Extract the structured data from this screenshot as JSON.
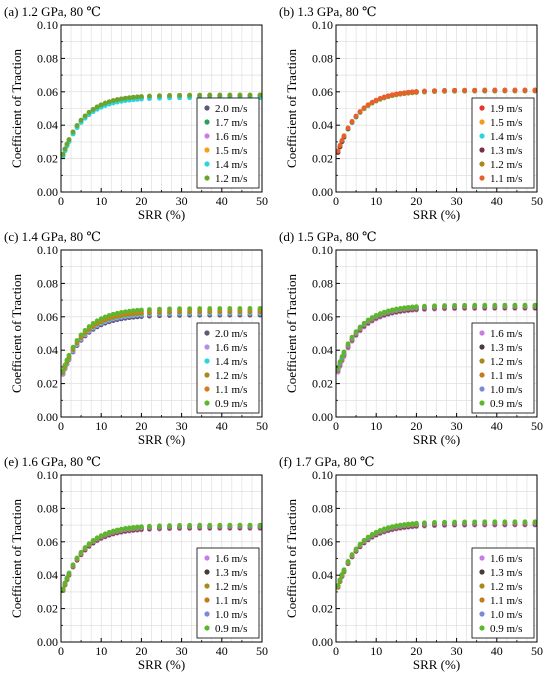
{
  "figure": {
    "background": "#ffffff"
  },
  "panels": [
    {
      "title": "(a) 1.2 GPa, 80 ℃",
      "chart_data": {
        "type": "scatter",
        "xlabel": "SRR (%)",
        "ylabel": "Coefficient of Traction",
        "xlim": [
          0,
          50
        ],
        "ylim": [
          0,
          0.1
        ],
        "xticks": [
          "0",
          "10",
          "20",
          "30",
          "40",
          "50"
        ],
        "yticks": [
          "0.00",
          "0.02",
          "0.04",
          "0.06",
          "0.08",
          "0.10"
        ],
        "grid": true,
        "legend_position": "bottom-right",
        "series": [
          {
            "name": "2.0 m/s",
            "color": "#5a5a78",
            "plateau": 0.058,
            "initial": 0.019
          },
          {
            "name": "1.7 m/s",
            "color": "#2e9e5b",
            "plateau": 0.057,
            "initial": 0.018
          },
          {
            "name": "1.6 m/s",
            "color": "#c77ce8",
            "plateau": 0.0575,
            "initial": 0.019
          },
          {
            "name": "1.5 m/s",
            "color": "#f4a11c",
            "plateau": 0.058,
            "initial": 0.019
          },
          {
            "name": "1.4 m/s",
            "color": "#2ad4e0",
            "plateau": 0.0565,
            "initial": 0.018
          },
          {
            "name": "1.2 m/s",
            "color": "#6aa52a",
            "plateau": 0.058,
            "initial": 0.019
          }
        ]
      }
    },
    {
      "title": "(b) 1.3 GPa, 80 ℃",
      "chart_data": {
        "type": "scatter",
        "xlabel": "SRR (%)",
        "ylabel": "Coefficient of Traction",
        "xlim": [
          0,
          50
        ],
        "ylim": [
          0,
          0.1
        ],
        "xticks": [
          "0",
          "10",
          "20",
          "30",
          "40",
          "50"
        ],
        "yticks": [
          "0.00",
          "0.02",
          "0.04",
          "0.06",
          "0.08",
          "0.10"
        ],
        "grid": true,
        "legend_position": "bottom-right",
        "series": [
          {
            "name": "1.9 m/s",
            "color": "#e8322b",
            "plateau": 0.061,
            "initial": 0.02
          },
          {
            "name": "1.5 m/s",
            "color": "#f49a1c",
            "plateau": 0.0605,
            "initial": 0.02
          },
          {
            "name": "1.4 m/s",
            "color": "#2ad4e0",
            "plateau": 0.0605,
            "initial": 0.02
          },
          {
            "name": "1.3 m/s",
            "color": "#7a2e4a",
            "plateau": 0.061,
            "initial": 0.02
          },
          {
            "name": "1.2 m/s",
            "color": "#a88a1c",
            "plateau": 0.0605,
            "initial": 0.021
          },
          {
            "name": "1.1 m/s",
            "color": "#e8602a",
            "plateau": 0.061,
            "initial": 0.021
          }
        ]
      }
    },
    {
      "title": "(c) 1.4 GPa, 80 ℃",
      "chart_data": {
        "type": "scatter",
        "xlabel": "SRR (%)",
        "ylabel": "Coefficient of Traction",
        "xlim": [
          0,
          50
        ],
        "ylim": [
          0,
          0.1
        ],
        "xticks": [
          "0",
          "10",
          "20",
          "30",
          "40",
          "50"
        ],
        "yticks": [
          "0.00",
          "0.02",
          "0.04",
          "0.06",
          "0.08",
          "0.10"
        ],
        "grid": true,
        "legend_position": "bottom-right",
        "series": [
          {
            "name": "2.0 m/s",
            "color": "#5a5a78",
            "plateau": 0.061,
            "initial": 0.022
          },
          {
            "name": "1.6 m/s",
            "color": "#b58ce8",
            "plateau": 0.062,
            "initial": 0.022
          },
          {
            "name": "1.4 m/s",
            "color": "#2ad4e0",
            "plateau": 0.0625,
            "initial": 0.023
          },
          {
            "name": "1.2 m/s",
            "color": "#a88a1c",
            "plateau": 0.063,
            "initial": 0.023
          },
          {
            "name": "1.1 m/s",
            "color": "#d87a1c",
            "plateau": 0.064,
            "initial": 0.024
          },
          {
            "name": "0.9 m/s",
            "color": "#5cb82a",
            "plateau": 0.065,
            "initial": 0.024
          }
        ]
      }
    },
    {
      "title": "(d) 1.5 GPa, 80 ℃",
      "chart_data": {
        "type": "scatter",
        "xlabel": "SRR (%)",
        "ylabel": "Coefficient of Traction",
        "xlim": [
          0,
          50
        ],
        "ylim": [
          0,
          0.1
        ],
        "xticks": [
          "0",
          "10",
          "20",
          "30",
          "40",
          "50"
        ],
        "yticks": [
          "0.00",
          "0.02",
          "0.04",
          "0.06",
          "0.08",
          "0.10"
        ],
        "grid": true,
        "legend_position": "bottom-right",
        "series": [
          {
            "name": "1.6 m/s",
            "color": "#c77ce8",
            "plateau": 0.065,
            "initial": 0.023
          },
          {
            "name": "1.3 m/s",
            "color": "#4a3a3a",
            "plateau": 0.0655,
            "initial": 0.024
          },
          {
            "name": "1.2 m/s",
            "color": "#a88a1c",
            "plateau": 0.066,
            "initial": 0.024
          },
          {
            "name": "1.1 m/s",
            "color": "#c77a1c",
            "plateau": 0.066,
            "initial": 0.025
          },
          {
            "name": "1.0 m/s",
            "color": "#7a8ad8",
            "plateau": 0.0665,
            "initial": 0.025
          },
          {
            "name": "0.9 m/s",
            "color": "#5cb82a",
            "plateau": 0.067,
            "initial": 0.026
          }
        ]
      }
    },
    {
      "title": "(e) 1.6 GPa, 80 ℃",
      "chart_data": {
        "type": "scatter",
        "xlabel": "SRR (%)",
        "ylabel": "Coefficient of Traction",
        "xlim": [
          0,
          50
        ],
        "ylim": [
          0,
          0.1
        ],
        "xticks": [
          "0",
          "10",
          "20",
          "30",
          "40",
          "50"
        ],
        "yticks": [
          "0.00",
          "0.02",
          "0.04",
          "0.06",
          "0.08",
          "0.10"
        ],
        "grid": true,
        "legend_position": "bottom-right",
        "series": [
          {
            "name": "1.6 m/s",
            "color": "#c77ce8",
            "plateau": 0.068,
            "initial": 0.027
          },
          {
            "name": "1.3 m/s",
            "color": "#4a3a3a",
            "plateau": 0.0685,
            "initial": 0.027
          },
          {
            "name": "1.2 m/s",
            "color": "#a88a1c",
            "plateau": 0.069,
            "initial": 0.027
          },
          {
            "name": "1.1 m/s",
            "color": "#c77a1c",
            "plateau": 0.069,
            "initial": 0.028
          },
          {
            "name": "1.0 m/s",
            "color": "#7a8ad8",
            "plateau": 0.0695,
            "initial": 0.028
          },
          {
            "name": "0.9 m/s",
            "color": "#5cb82a",
            "plateau": 0.07,
            "initial": 0.028
          }
        ]
      }
    },
    {
      "title": "(f) 1.7 GPa, 80 ℃",
      "chart_data": {
        "type": "scatter",
        "xlabel": "SRR (%)",
        "ylabel": "Coefficient of Traction",
        "xlim": [
          0,
          50
        ],
        "ylim": [
          0,
          0.1
        ],
        "xticks": [
          "0",
          "10",
          "20",
          "30",
          "40",
          "50"
        ],
        "yticks": [
          "0.00",
          "0.02",
          "0.04",
          "0.06",
          "0.08",
          "0.10"
        ],
        "grid": true,
        "legend_position": "bottom-right",
        "series": [
          {
            "name": "1.6 m/s",
            "color": "#c77ce8",
            "plateau": 0.07,
            "initial": 0.029
          },
          {
            "name": "1.3 m/s",
            "color": "#4a3a3a",
            "plateau": 0.0705,
            "initial": 0.029
          },
          {
            "name": "1.2 m/s",
            "color": "#a88a1c",
            "plateau": 0.071,
            "initial": 0.029
          },
          {
            "name": "1.1 m/s",
            "color": "#c77a1c",
            "plateau": 0.071,
            "initial": 0.03
          },
          {
            "name": "1.0 m/s",
            "color": "#7a8ad8",
            "plateau": 0.0715,
            "initial": 0.03
          },
          {
            "name": "0.9 m/s",
            "color": "#5cb82a",
            "plateau": 0.072,
            "initial": 0.03
          }
        ]
      }
    }
  ]
}
